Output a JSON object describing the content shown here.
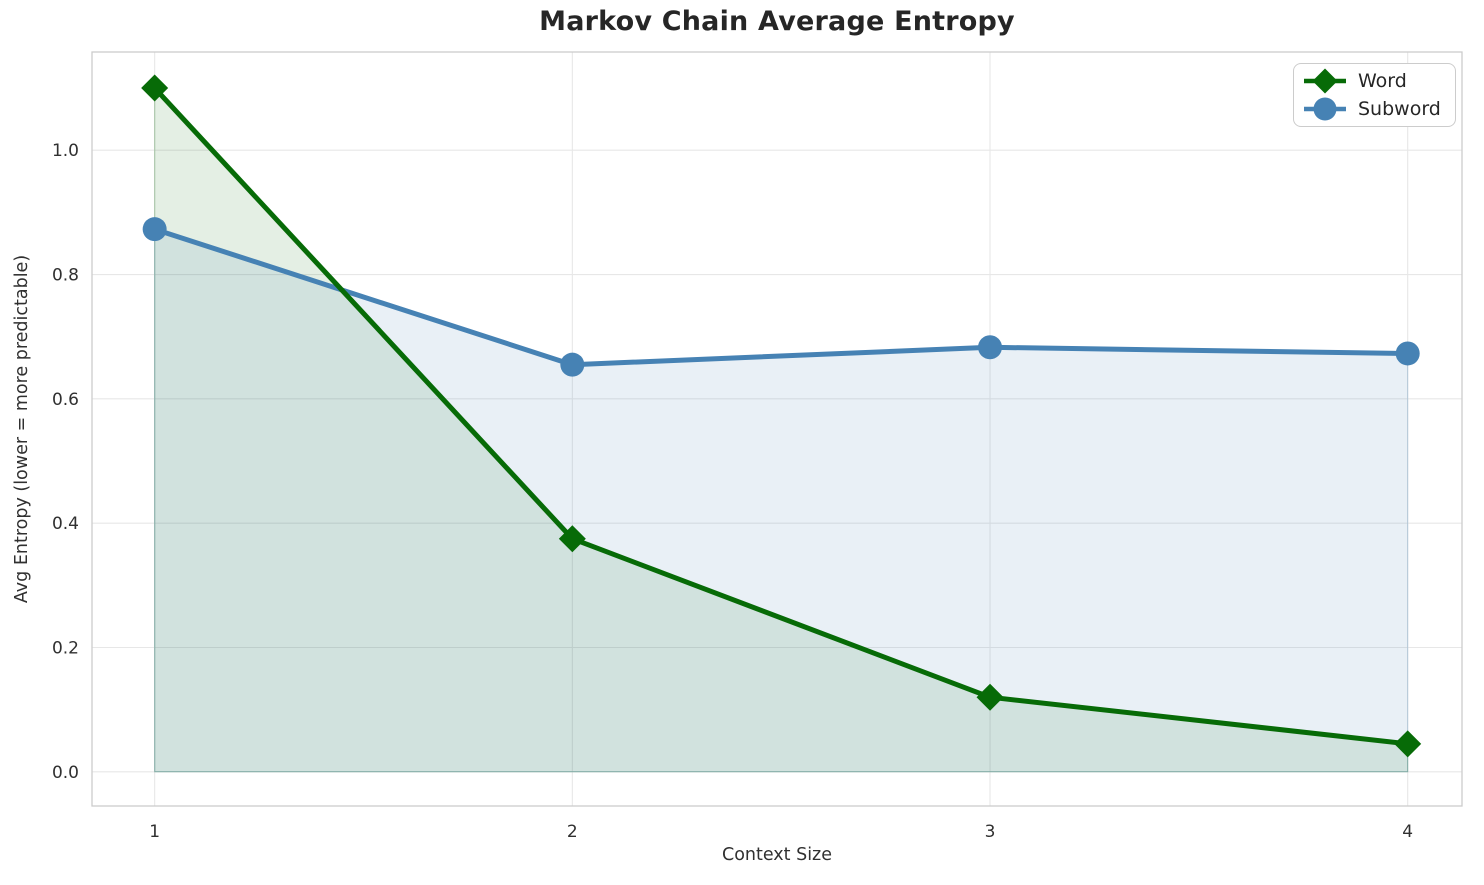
{
  "chart_data": {
    "type": "line",
    "title": "Markov Chain Average Entropy",
    "xlabel": "Context Size",
    "ylabel": "Avg Entropy (lower = more predictable)",
    "x": [
      1,
      2,
      3,
      4
    ],
    "series": [
      {
        "name": "Word",
        "marker": "diamond",
        "color": "#076b07",
        "fill_alpha": 0.11,
        "values": [
          1.1,
          0.375,
          0.12,
          0.045
        ]
      },
      {
        "name": "Subword",
        "marker": "circle",
        "color": "#4682b4",
        "fill_alpha": 0.12,
        "values": [
          0.873,
          0.655,
          0.683,
          0.673
        ]
      }
    ],
    "fill_to_zero": true,
    "xticks": [
      1,
      2,
      3,
      4
    ],
    "yticks": [
      0.0,
      0.2,
      0.4,
      0.6,
      0.8,
      1.0
    ],
    "xlim": [
      0.85,
      4.13
    ],
    "ylim": [
      -0.055,
      1.158
    ],
    "grid": true,
    "legend_position": "upper right",
    "colors": {
      "grid": "#e7e7e7",
      "spine": "#cccccc",
      "tick_label": "#303030",
      "text": "#262626",
      "background": "#ffffff"
    }
  }
}
